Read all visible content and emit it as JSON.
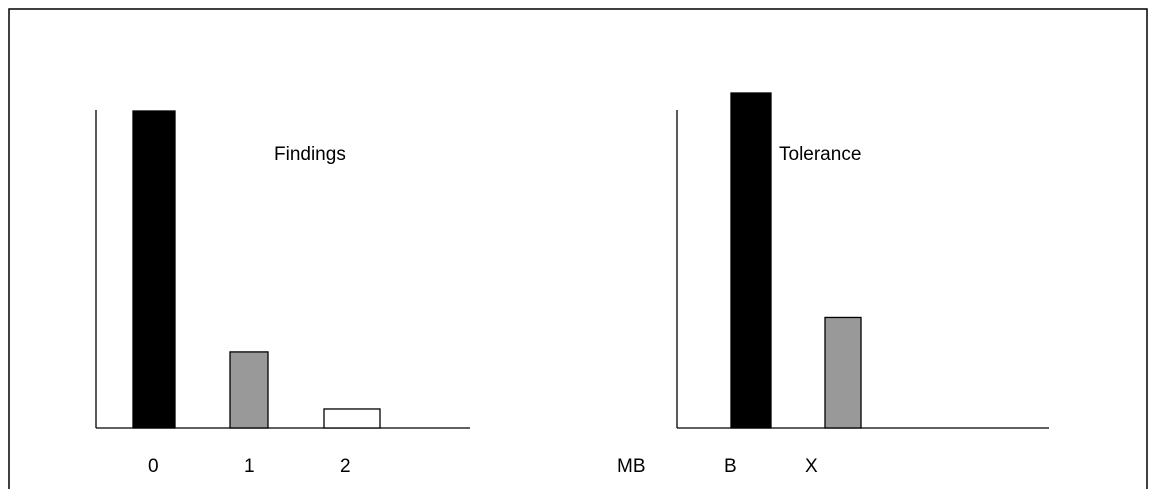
{
  "chart_data": [
    {
      "type": "bar",
      "title": "Findings",
      "categories": [
        "0",
        "1",
        "2"
      ],
      "values": [
        100,
        24,
        6
      ],
      "colors": [
        "#000000",
        "#999999",
        "#ffffff"
      ],
      "ylim": [
        0,
        100
      ],
      "grid": false
    },
    {
      "type": "bar",
      "title": "Tolerance",
      "axis_prefix_label": "MB",
      "categories": [
        "B",
        "X"
      ],
      "values": [
        100,
        33
      ],
      "colors": [
        "#000000",
        "#999999"
      ],
      "ylim": [
        0,
        100
      ],
      "grid": false
    }
  ]
}
